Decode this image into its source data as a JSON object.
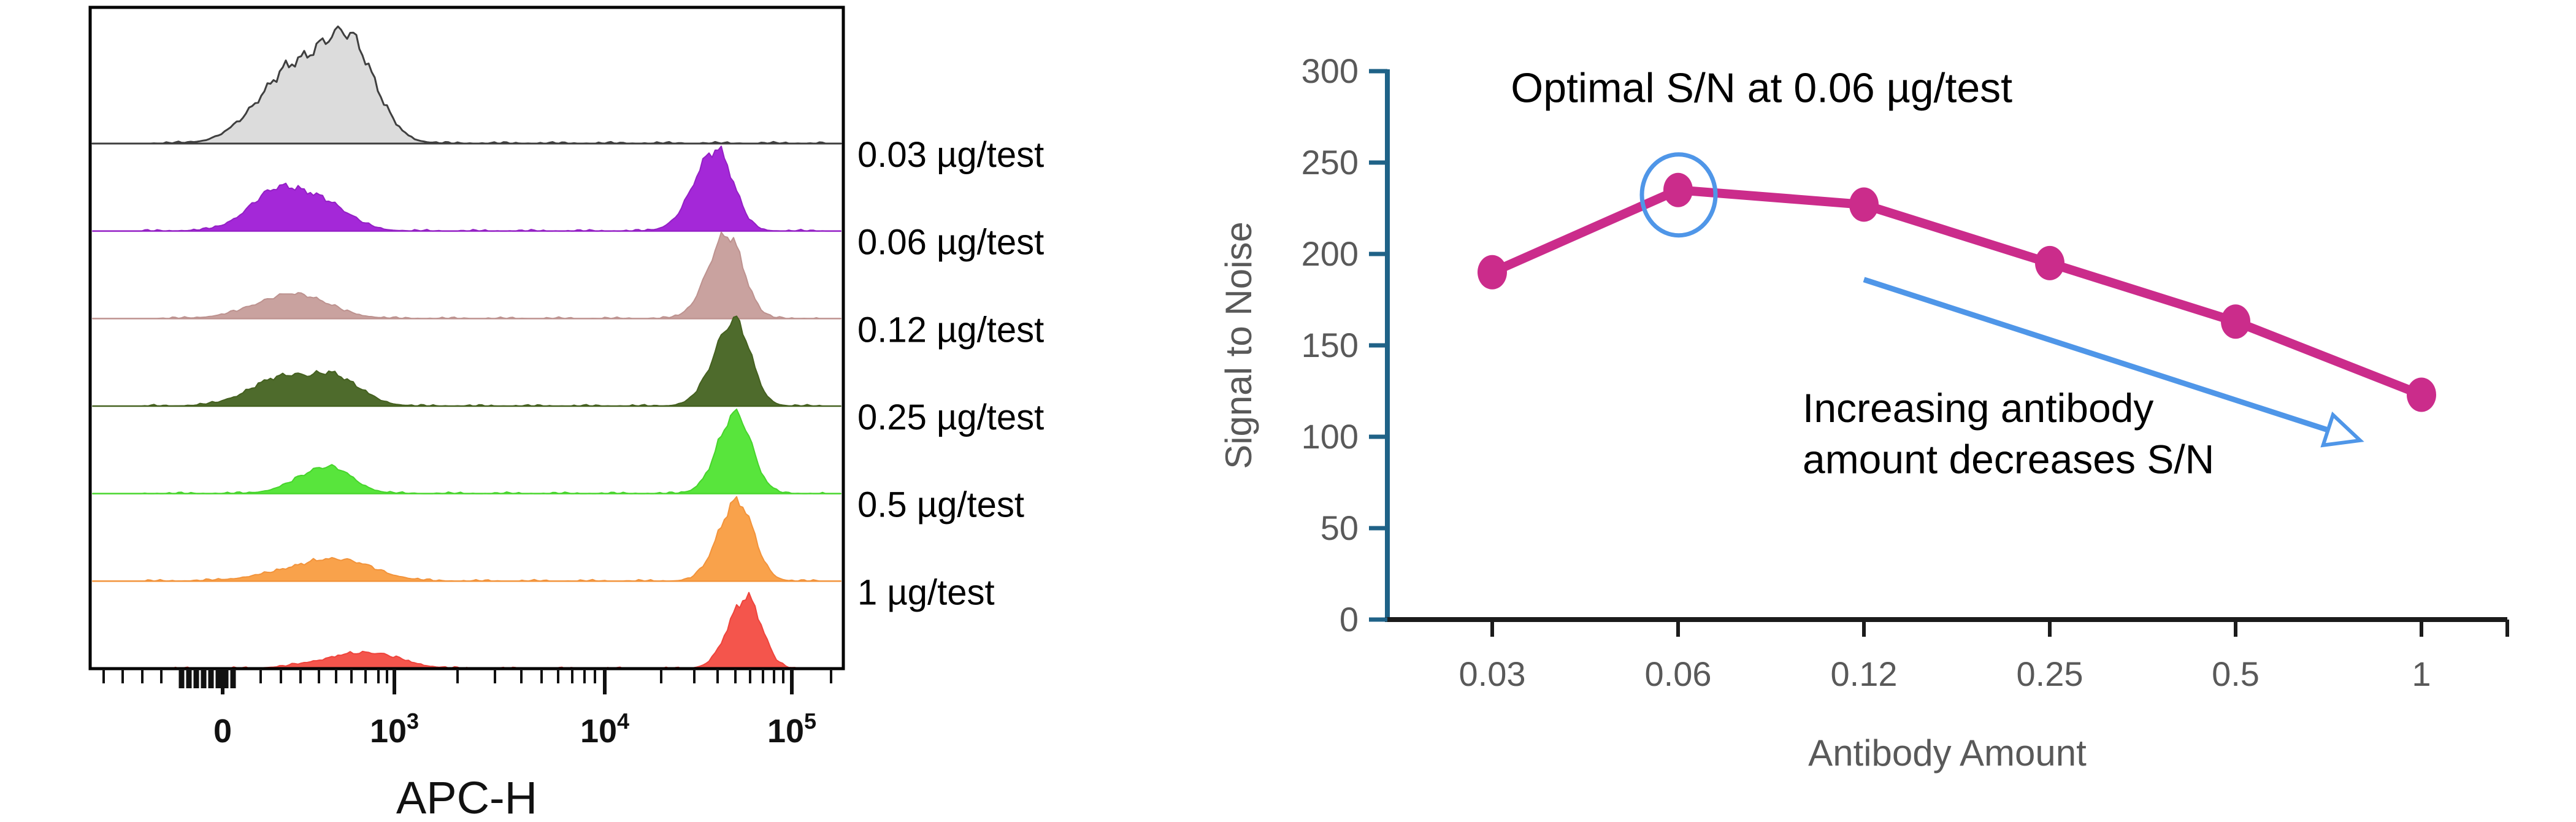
{
  "figure": {
    "description": "Antibody titration figure: flow cytometry ridge histograms (left) and signal-to-noise optimization line chart (right)",
    "background": "#ffffff"
  },
  "colors": {
    "sn_line": "#CB2C8B",
    "annotation_blue": "#4F96E8",
    "y_axis_teal": "#1F6287",
    "x_axis_dark": "#1B1B1B",
    "tick_label_gray": "#595959",
    "frame_black": "#000000",
    "annotation_text": "#000000"
  },
  "chart_data": [
    {
      "id": "flow-histograms",
      "type": "area",
      "subtype": "stacked-ridge-histograms",
      "xlabel": "APC-H",
      "x_scale": "biexponential",
      "x_major_ticks": [
        {
          "x": 363,
          "base": "0",
          "sup": ""
        },
        {
          "x": 643,
          "base": "10",
          "sup": "3"
        },
        {
          "x": 986,
          "base": "10",
          "sup": "4"
        },
        {
          "x": 1291,
          "base": "10",
          "sup": "5"
        }
      ],
      "x_minor_ticks": [
        169,
        200,
        232,
        263,
        425,
        458,
        490,
        520,
        548,
        573,
        596,
        617,
        631,
        746,
        807,
        850,
        883,
        910,
        933,
        953,
        970,
        1078,
        1132,
        1170,
        1199,
        1223,
        1244,
        1262,
        1277,
        1355
      ],
      "x_zero_cluster_ticks": [
        296,
        308,
        320,
        332,
        344,
        356,
        368,
        380
      ],
      "series": [
        {
          "label": "",
          "name": "unstained-control",
          "fill": "#DCDCDC",
          "outline": "#3F3F3F",
          "bumps": [
            {
              "c": 562,
              "wl": 150,
              "wr": 95,
              "h": 182
            },
            {
              "c": 452,
              "wl": 110,
              "wr": 70,
              "h": 55
            }
          ]
        },
        {
          "label": "0.03 µg/test",
          "name": "0.03-ug-per-test",
          "fill": "#A428D8",
          "outline": "#9320C4",
          "bumps": [
            {
              "c": 520,
              "wl": 150,
              "wr": 95,
              "h": 50
            },
            {
              "c": 448,
              "wl": 90,
              "wr": 80,
              "h": 40
            },
            {
              "c": 1168,
              "wl": 75,
              "wr": 58,
              "h": 133
            }
          ]
        },
        {
          "label": "0.06 µg/test",
          "name": "0.06-ug-per-test",
          "fill": "#C9A29F",
          "outline": "#BD928F",
          "bumps": [
            {
              "c": 480,
              "wl": 130,
              "wr": 115,
              "h": 40
            },
            {
              "c": 1186,
              "wl": 66,
              "wr": 55,
              "h": 136
            }
          ]
        },
        {
          "label": "0.12 µg/test",
          "name": "0.12-ug-per-test",
          "fill": "#4E6B2C",
          "outline": "#44601F",
          "bumps": [
            {
              "c": 470,
              "wl": 120,
              "wr": 80,
              "h": 50
            },
            {
              "c": 545,
              "wl": 60,
              "wr": 90,
              "h": 46
            },
            {
              "c": 1198,
              "wl": 70,
              "wr": 54,
              "h": 140
            }
          ]
        },
        {
          "label": "0.25 µg/test",
          "name": "0.25-ug-per-test",
          "fill": "#58E53C",
          "outline": "#47D42C",
          "bumps": [
            {
              "c": 535,
              "wl": 100,
              "wr": 80,
              "h": 44
            },
            {
              "c": 1200,
              "wl": 62,
              "wr": 54,
              "h": 130
            }
          ]
        },
        {
          "label": "0.5 µg/test",
          "name": "0.5-ug-per-test",
          "fill": "#F9A24B",
          "outline": "#F2933B",
          "bumps": [
            {
              "c": 550,
              "wl": 170,
              "wr": 120,
              "h": 36
            },
            {
              "c": 1202,
              "wl": 64,
              "wr": 56,
              "h": 130
            }
          ]
        },
        {
          "label": "1 µg/test",
          "name": "1-ug-per-test",
          "fill": "#F4554C",
          "outline": "#EE443C",
          "bumps": [
            {
              "c": 600,
              "wl": 150,
              "wr": 110,
              "h": 26
            },
            {
              "c": 1218,
              "wl": 62,
              "wr": 50,
              "h": 116
            }
          ]
        }
      ]
    },
    {
      "id": "signal-to-noise",
      "type": "line",
      "title": "",
      "xlabel": "Antibody Amount",
      "ylabel": "Signal to Noise",
      "categories": [
        0.03,
        0.06,
        0.12,
        0.25,
        0.5,
        1
      ],
      "values": [
        190,
        235,
        227,
        195,
        163,
        123
      ],
      "ylim": [
        0,
        300
      ],
      "yticks": [
        0,
        50,
        100,
        150,
        200,
        250,
        300
      ],
      "grid": "off",
      "legend": "none",
      "line_color": "#CB2C8B",
      "marker": "filled-circle",
      "highlight": {
        "index": 1,
        "color": "#4F96E8",
        "meaning": "optimal point"
      },
      "arrow": {
        "start_cat_index": 2.0,
        "start_value": 186,
        "end_cat_index": 4.67,
        "end_value": 98,
        "color": "#4F96E8"
      },
      "annotations": [
        {
          "id": "optimal",
          "text": "Optimal S/N at 0.06 µg/test",
          "cat_index": 0.1,
          "value": 283
        },
        {
          "id": "increasing-1",
          "text": "Increasing antibody",
          "cat_index": 1.67,
          "value": 108
        },
        {
          "id": "increasing-2",
          "text": "amount decreases S/N",
          "cat_index": 1.67,
          "value": 80
        }
      ]
    }
  ]
}
